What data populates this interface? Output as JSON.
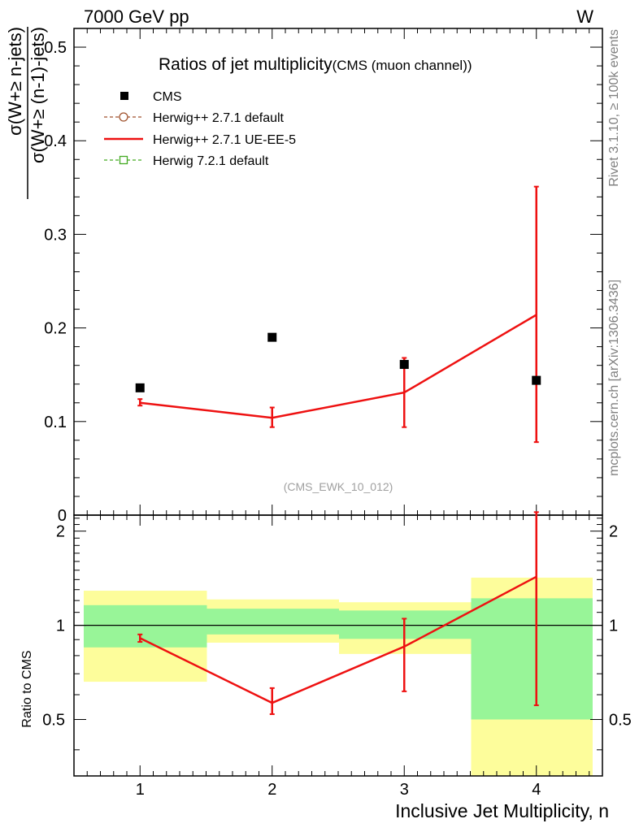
{
  "header": {
    "energy_label": "7000 GeV pp",
    "process_label": "W"
  },
  "side_labels": {
    "rivet": "Rivet 3.1.10, ≥ 100k events",
    "mcplots": "mcplots.cern.ch [arXiv:1306.3436]"
  },
  "chart_data": [
    {
      "type": "scatter",
      "title": "Ratios of jet multiplicity",
      "subtitle": "(CMS (muon channel))",
      "watermark": "(CMS_EWK_10_012)",
      "ylabel_numerator": "σ(W+≥ n-jets)",
      "ylabel_denominator": "σ(W+≥ (n-1)-jets)",
      "xlim": [
        0.5,
        4.5
      ],
      "ylim": [
        0,
        0.52
      ],
      "y_ticks": [
        0,
        0.1,
        0.2,
        0.3,
        0.4,
        0.5
      ],
      "y_tick_labels": [
        "0",
        "0.1",
        "0.2",
        "0.3",
        "0.4",
        "0.5"
      ],
      "legend": {
        "placement": "top-left",
        "entries": [
          {
            "label": "CMS",
            "style": "square-marker",
            "color": "#000000"
          },
          {
            "label": "Herwig++ 2.7.1 default",
            "style": "dashed-circle",
            "color": "#a0522d"
          },
          {
            "label": "Herwig++ 2.7.1 UE-EE-5",
            "style": "solid-line",
            "color": "#ee1111"
          },
          {
            "label": "Herwig 7.2.1 default",
            "style": "dashed-square",
            "color": "#44aa22"
          }
        ]
      },
      "series": [
        {
          "name": "CMS",
          "x": [
            1,
            2,
            3,
            4
          ],
          "y": [
            0.136,
            0.19,
            0.161,
            0.144
          ]
        },
        {
          "name": "Herwig++ 2.7.1 UE-EE-5",
          "x": [
            1,
            2,
            3,
            4
          ],
          "y": [
            0.12,
            0.104,
            0.131,
            0.214
          ],
          "err_low": [
            0.117,
            0.094,
            0.094,
            0.078
          ],
          "err_high": [
            0.124,
            0.115,
            0.168,
            0.351
          ]
        }
      ]
    },
    {
      "type": "scatter",
      "ylabel": "Ratio to CMS",
      "xlabel": "Inclusive Jet Multiplicity, n",
      "xlim": [
        0.5,
        4.5
      ],
      "ylim": [
        0.33,
        2.25
      ],
      "x_ticks": [
        1,
        2,
        3,
        4
      ],
      "x_tick_labels": [
        "1",
        "2",
        "3",
        "4"
      ],
      "y_ticks": [
        0.5,
        1,
        2
      ],
      "y_tick_labels": [
        "0.5",
        "1",
        "2"
      ],
      "reference_line": 1,
      "bands": [
        {
          "x": [
            0.5,
            1.5
          ],
          "inner": [
            0.85,
            1.16
          ],
          "outer": [
            0.66,
            1.29
          ]
        },
        {
          "x": [
            1.5,
            2.5
          ],
          "inner": [
            0.935,
            1.13
          ],
          "outer": [
            0.88,
            1.21
          ]
        },
        {
          "x": [
            2.5,
            3.5
          ],
          "inner": [
            0.905,
            1.115
          ],
          "outer": [
            0.81,
            1.185
          ]
        },
        {
          "x": [
            3.5,
            4.5
          ],
          "inner": [
            0.5,
            1.22
          ],
          "outer": [
            0.33,
            1.42
          ]
        }
      ],
      "band_colors": {
        "inner": "#98f598",
        "outer": "#fdfd9b"
      },
      "series": [
        {
          "name": "Herwig++ 2.7.1 UE-EE-5",
          "x": [
            1,
            2,
            3,
            4
          ],
          "y": [
            0.91,
            0.565,
            0.855,
            1.43
          ],
          "err_low": [
            0.885,
            0.52,
            0.615,
            0.555
          ],
          "err_high": [
            0.935,
            0.63,
            1.05,
            2.3
          ]
        }
      ]
    }
  ]
}
